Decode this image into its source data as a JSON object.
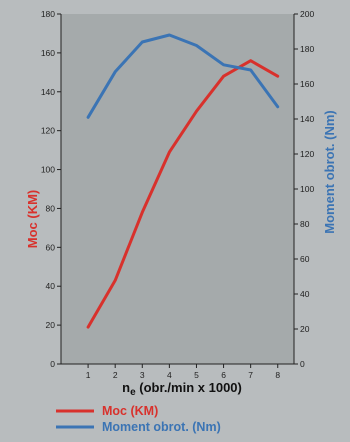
{
  "chart_data": {
    "type": "line",
    "x": [
      1,
      2,
      3,
      4,
      5,
      6,
      7,
      8
    ],
    "x_ticks": [
      1,
      2,
      3,
      4,
      5,
      6,
      7,
      8
    ],
    "x_label_main": "n",
    "x_label_sub": "e",
    "x_label_rest": " (obr./min x 1000)",
    "xlim": [
      0,
      8.6
    ],
    "left_axis": {
      "label": "Moc (KM)",
      "ylim": [
        0,
        180
      ],
      "ticks": [
        0,
        20,
        40,
        60,
        80,
        100,
        120,
        140,
        160,
        180
      ]
    },
    "right_axis": {
      "label": "Moment obrot. (Nm)",
      "ylim": [
        0,
        200
      ],
      "ticks": [
        0,
        20,
        40,
        60,
        80,
        100,
        120,
        140,
        160,
        180,
        200
      ]
    },
    "series": [
      {
        "name": "Moc (KM)",
        "axis": "left",
        "color": "#d8312c",
        "values": [
          19,
          43,
          78,
          109,
          130,
          148,
          156,
          148
        ]
      },
      {
        "name": "Moment obrot. (Nm)",
        "axis": "right",
        "color": "#3b74b4",
        "values": [
          141,
          167,
          184,
          188,
          182,
          171,
          168,
          147
        ]
      }
    ],
    "grid": false,
    "legend_position": "bottom-left"
  }
}
